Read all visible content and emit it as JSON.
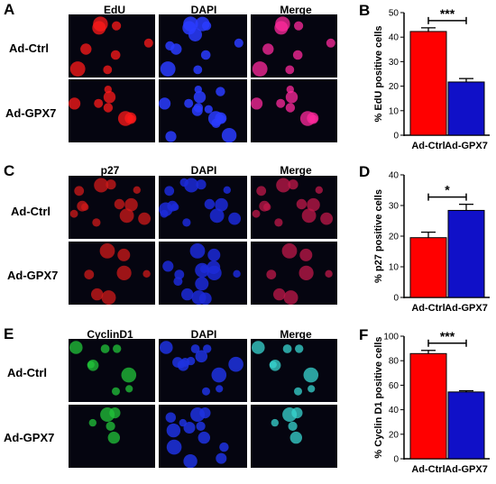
{
  "figure": {
    "panels": [
      {
        "letter": "A",
        "stain": "EdU",
        "dapi": "DAPI",
        "merge": "Merge",
        "rows": [
          "Ad-Ctrl",
          "Ad-GPX7"
        ],
        "colors": {
          "stain": "#ff1a1a",
          "dapi": "#2a3cff",
          "merge": "#ff2a9c"
        }
      },
      {
        "letter": "C",
        "stain": "p27",
        "dapi": "DAPI",
        "merge": "Merge",
        "rows": [
          "Ad-Ctrl",
          "Ad-GPX7"
        ],
        "colors": {
          "stain": "#d01a1a",
          "dapi": "#1c2ad8",
          "merge": "#c0184a"
        }
      },
      {
        "letter": "E",
        "stain": "CyclinD1",
        "dapi": "DAPI",
        "merge": "Merge",
        "rows": [
          "Ad-Ctrl",
          "Ad-GPX7"
        ],
        "colors": {
          "stain": "#22c43a",
          "dapi": "#1e32e0",
          "merge": "#38d6d0"
        }
      }
    ],
    "chart_letters": [
      "B",
      "D",
      "F"
    ]
  },
  "chart_data": [
    {
      "type": "bar",
      "categories": [
        "Ad-Ctrl",
        "Ad-GPX7"
      ],
      "values": [
        42.3,
        21.7
      ],
      "errors": [
        1.5,
        1.4
      ],
      "colors": [
        "#ff0000",
        "#1010c8"
      ],
      "ylabel": "% EdU positive cells",
      "ylim": [
        0,
        50
      ],
      "yticks": [
        0,
        10,
        20,
        30,
        40,
        50
      ],
      "significance": "***",
      "grid": false
    },
    {
      "type": "bar",
      "categories": [
        "Ad-Ctrl",
        "Ad-GPX7"
      ],
      "values": [
        19.5,
        28.4
      ],
      "errors": [
        1.8,
        2.0
      ],
      "colors": [
        "#ff0000",
        "#1010c8"
      ],
      "ylabel": "% p27 positive cells",
      "ylim": [
        0,
        40
      ],
      "yticks": [
        0,
        10,
        20,
        30,
        40
      ],
      "significance": "*",
      "grid": false
    },
    {
      "type": "bar",
      "categories": [
        "Ad-Ctrl",
        "Ad-GPX7"
      ],
      "values": [
        85.8,
        54.5
      ],
      "errors": [
        2.6,
        1.0
      ],
      "colors": [
        "#ff0000",
        "#1010c8"
      ],
      "ylabel": "% Cyclin D1 positive cells",
      "ylim": [
        0,
        100
      ],
      "yticks": [
        0,
        20,
        40,
        60,
        80,
        100
      ],
      "significance": "***",
      "grid": false
    }
  ]
}
